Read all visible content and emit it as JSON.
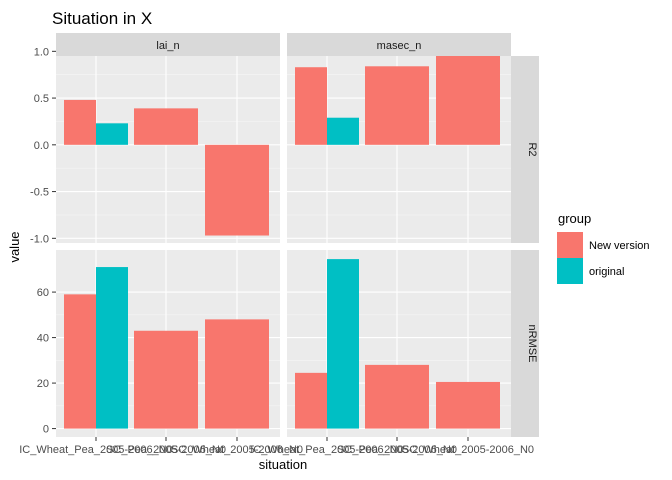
{
  "chart_data": {
    "type": "bar",
    "title": "Situation in X",
    "xlabel": "situation",
    "ylabel": "value",
    "categories": [
      "IC_Wheat_Pea_2005-2006_N0",
      "SC_Pea_2005-2006_N0",
      "SC_Wheat_2005-2006_N0"
    ],
    "facet_cols": [
      "lai_n",
      "masec_n"
    ],
    "facet_rows": [
      "R2",
      "nRMSE"
    ],
    "legend": {
      "title": "group",
      "position": "right",
      "entries": [
        {
          "name": "New version",
          "color": "#F8766D"
        },
        {
          "name": "original",
          "color": "#00BFC4"
        }
      ]
    },
    "grid": true,
    "panel_background": "#EBEBEB",
    "strip_background": "#D9D9D9",
    "rows": [
      {
        "strip": "R2",
        "ylim": [
          -1.0,
          1.0
        ],
        "yticks": [
          1.0,
          0.5,
          0.0,
          -0.5,
          -1.0
        ],
        "ytick_labels": [
          "1.0",
          "0.5",
          "0.0",
          "-0.5",
          "-1.0"
        ]
      },
      {
        "strip": "nRMSE",
        "ylim": [
          0,
          75
        ],
        "yticks": [
          60,
          40,
          20,
          0
        ],
        "ytick_labels": [
          "60",
          "40",
          "20",
          "0"
        ]
      }
    ],
    "panels": [
      {
        "row": "R2",
        "col": "lai_n",
        "bars": [
          {
            "category": "IC_Wheat_Pea_2005-2006_N0",
            "group": "New version",
            "value": 0.48
          },
          {
            "category": "IC_Wheat_Pea_2005-2006_N0",
            "group": "original",
            "value": 0.23
          },
          {
            "category": "SC_Pea_2005-2006_N0",
            "group": "New version",
            "value": 0.39
          },
          {
            "category": "SC_Wheat_2005-2006_N0",
            "group": "New version",
            "value": -0.97
          }
        ]
      },
      {
        "row": "R2",
        "col": "masec_n",
        "bars": [
          {
            "category": "IC_Wheat_Pea_2005-2006_N0",
            "group": "New version",
            "value": 0.83
          },
          {
            "category": "IC_Wheat_Pea_2005-2006_N0",
            "group": "original",
            "value": 0.29
          },
          {
            "category": "SC_Pea_2005-2006_N0",
            "group": "New version",
            "value": 0.84
          },
          {
            "category": "SC_Wheat_2005-2006_N0",
            "group": "New version",
            "value": 0.95
          }
        ]
      },
      {
        "row": "nRMSE",
        "col": "lai_n",
        "bars": [
          {
            "category": "IC_Wheat_Pea_2005-2006_N0",
            "group": "New version",
            "value": 59
          },
          {
            "category": "IC_Wheat_Pea_2005-2006_N0",
            "group": "original",
            "value": 71
          },
          {
            "category": "SC_Pea_2005-2006_N0",
            "group": "New version",
            "value": 43
          },
          {
            "category": "SC_Wheat_2005-2006_N0",
            "group": "New version",
            "value": 48
          }
        ]
      },
      {
        "row": "nRMSE",
        "col": "masec_n",
        "bars": [
          {
            "category": "IC_Wheat_Pea_2005-2006_N0",
            "group": "New version",
            "value": 24.5
          },
          {
            "category": "IC_Wheat_Pea_2005-2006_N0",
            "group": "original",
            "value": 74.5
          },
          {
            "category": "SC_Pea_2005-2006_N0",
            "group": "New version",
            "value": 28
          },
          {
            "category": "SC_Wheat_2005-2006_N0",
            "group": "New version",
            "value": 20.5
          }
        ]
      }
    ]
  }
}
